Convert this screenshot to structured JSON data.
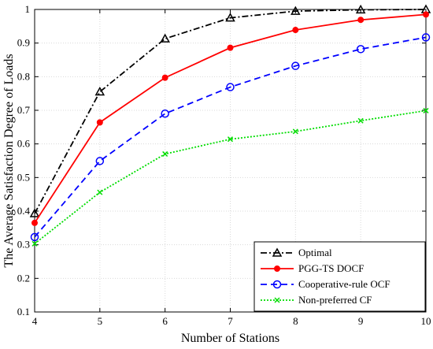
{
  "chart_data": {
    "type": "line",
    "title": "",
    "xlabel": "Number of Stations",
    "ylabel": "The Average Satisfaction Degree of Loads",
    "xlim": [
      4,
      10
    ],
    "ylim": [
      0.1,
      1
    ],
    "x_ticks": [
      4,
      5,
      6,
      7,
      8,
      9,
      10
    ],
    "y_ticks": [
      0.1,
      0.2,
      0.3,
      0.4,
      0.5,
      0.6,
      0.7,
      0.8,
      0.9,
      1
    ],
    "grid": true,
    "legend_position": "bottom-right",
    "x": [
      4,
      5,
      6,
      7,
      8,
      9,
      10
    ],
    "series": [
      {
        "name": "Optimal",
        "values": [
          0.393,
          0.755,
          0.913,
          0.975,
          0.995,
          0.999,
          1.0
        ],
        "color": "#000000",
        "dash": "dashdot",
        "marker": "triangle"
      },
      {
        "name": "PGG-TS DOCF",
        "values": [
          0.365,
          0.664,
          0.797,
          0.886,
          0.939,
          0.969,
          0.985
        ],
        "color": "#ff0000",
        "dash": "solid",
        "marker": "filled-circle"
      },
      {
        "name": "Cooperative-rule OCF",
        "values": [
          0.323,
          0.549,
          0.69,
          0.769,
          0.832,
          0.882,
          0.917
        ],
        "color": "#0000ff",
        "dash": "dashed",
        "marker": "open-circle"
      },
      {
        "name": "Non-preferred CF",
        "values": [
          0.303,
          0.456,
          0.57,
          0.614,
          0.637,
          0.669,
          0.699
        ],
        "color": "#00dd00",
        "dash": "dotted",
        "marker": "x"
      }
    ]
  }
}
